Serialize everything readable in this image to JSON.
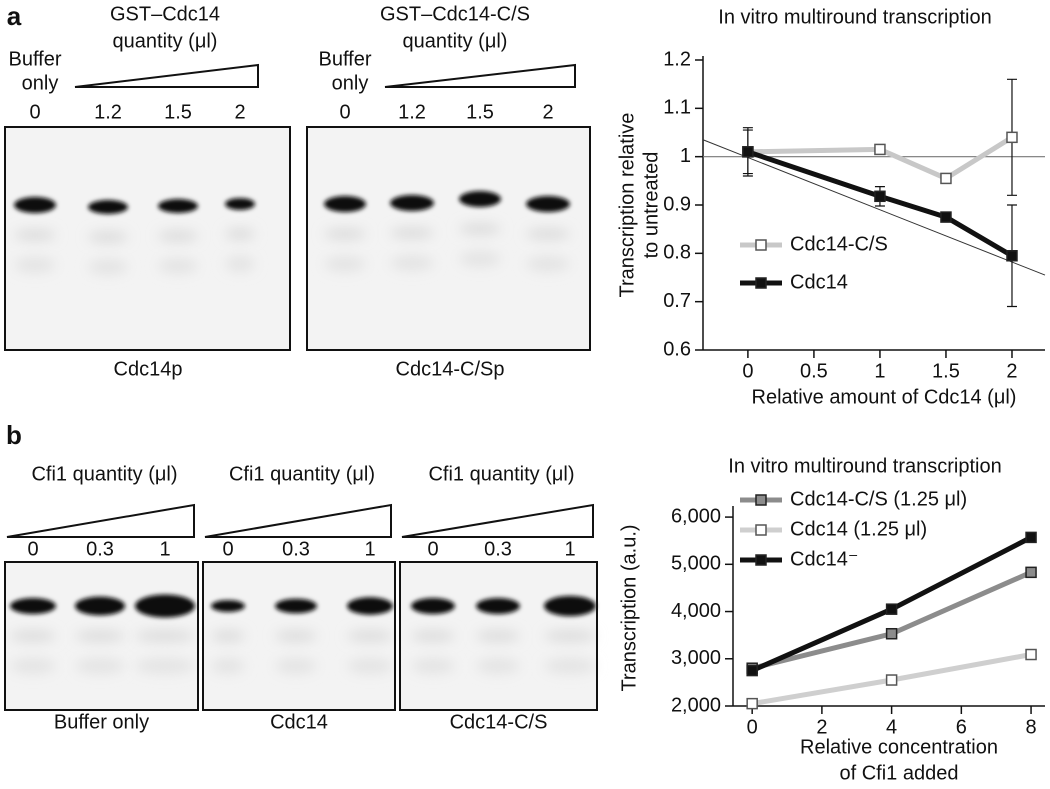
{
  "panels": {
    "a": {
      "label": "a",
      "gels": [
        {
          "header": [
            "GST–Cdc14",
            "quantity (μl)"
          ],
          "control": [
            "Buffer",
            "only"
          ],
          "lanes": [
            "0",
            "1.2",
            "1.5",
            "2"
          ],
          "caption": "Cdc14p"
        },
        {
          "header": [
            "GST–Cdc14-C/S",
            "quantity (μl)"
          ],
          "control": [
            "Buffer",
            "only"
          ],
          "lanes": [
            "0",
            "1.2",
            "1.5",
            "2"
          ],
          "caption": "Cdc14-C/Sp"
        }
      ]
    },
    "b": {
      "label": "b",
      "gels": [
        {
          "header": "Cfi1 quantity (μl)",
          "lanes": [
            "0",
            "0.3",
            "1"
          ],
          "caption": "Buffer only"
        },
        {
          "header": "Cfi1 quantity (μl)",
          "lanes": [
            "0",
            "0.3",
            "1"
          ],
          "caption": "Cdc14"
        },
        {
          "header": "Cfi1 quantity (μl)",
          "lanes": [
            "0",
            "0.3",
            "1"
          ],
          "caption": "Cdc14-C/S"
        }
      ]
    }
  },
  "chart_data": [
    {
      "type": "line",
      "title": "In vitro multiround transcription",
      "y_label": [
        "Transcription relative",
        "to untreated"
      ],
      "x_label": "Relative amount of Cdc14 (μl)",
      "xlim": [
        -0.34,
        2.25
      ],
      "xticks": [
        0,
        0.5,
        1,
        1.5,
        2
      ],
      "ylim": [
        0.6,
        1.2
      ],
      "yticks": [
        0.6,
        0.7,
        0.8,
        0.9,
        1,
        1.1,
        1.2
      ],
      "reference_line": 1,
      "trend_line": {
        "x": [
          -0.34,
          2.25
        ],
        "values": [
          1.035,
          0.755
        ]
      },
      "series": [
        {
          "name": "Cdc14-C/S",
          "color": "#c8c8c8",
          "marker": "open",
          "x": [
            0,
            1,
            1.5,
            2
          ],
          "values": [
            1.01,
            1.015,
            0.955,
            1.04
          ],
          "errors": [
            0.045,
            0.01,
            0.01,
            0.12
          ]
        },
        {
          "name": "Cdc14",
          "color": "#111111",
          "marker": "filled",
          "x": [
            0,
            1,
            1.5,
            2
          ],
          "values": [
            1.01,
            0.918,
            0.875,
            0.795
          ],
          "errors": [
            0.05,
            0.02,
            0.01,
            0.105
          ]
        }
      ]
    },
    {
      "type": "line",
      "title": "In vitro multiround transcription",
      "y_label": [
        "Transcription (a.u.)"
      ],
      "x_label": [
        "Relative concentration",
        "of Cfi1 added"
      ],
      "xlim": [
        -0.55,
        8.4
      ],
      "xticks": [
        0,
        2,
        4,
        6,
        8
      ],
      "ylim": [
        2000,
        6150
      ],
      "yticks": [
        {
          "value": 2000,
          "label": "2,000"
        },
        {
          "value": 3000,
          "label": "3,000"
        },
        {
          "value": 4000,
          "label": "4,000"
        },
        {
          "value": 5000,
          "label": "5,000"
        },
        {
          "value": 6000,
          "label": "6,000"
        }
      ],
      "series": [
        {
          "name": "Cdc14-C/S (1.25 μl)",
          "color": "#8c8c8c",
          "marker": "filled",
          "x": [
            0,
            4,
            8
          ],
          "values": [
            2800,
            3530,
            4830
          ]
        },
        {
          "name": "Cdc14 (1.25 μl)",
          "color": "#cfcfcf",
          "marker": "open",
          "x": [
            0,
            4,
            8
          ],
          "values": [
            2050,
            2550,
            3090
          ]
        },
        {
          "name": "Cdc14⁻",
          "color": "#111111",
          "marker": "filled",
          "x": [
            0,
            4,
            8
          ],
          "values": [
            2750,
            4050,
            5570
          ]
        }
      ]
    }
  ]
}
